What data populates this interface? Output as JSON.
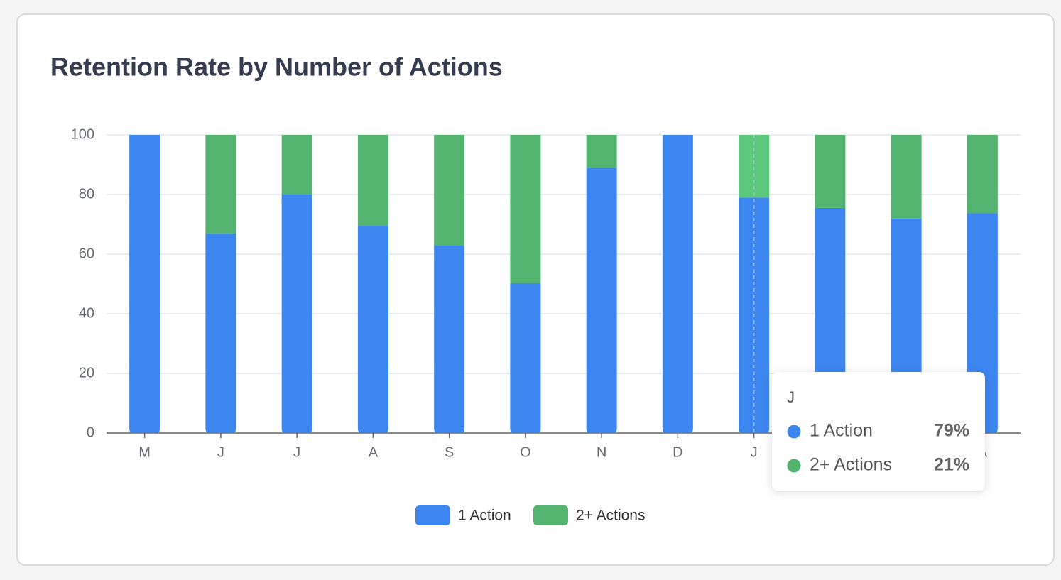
{
  "chart_data": {
    "type": "stacked-bar",
    "title": "Retention Rate by Number of Actions",
    "categories": [
      "M",
      "J",
      "J",
      "A",
      "S",
      "O",
      "N",
      "D",
      "J",
      null,
      null,
      "A"
    ],
    "series": [
      {
        "name": "1 Action",
        "color": "#3d86f0",
        "values": [
          100,
          67,
          80,
          69.5,
          63,
          50.3,
          89,
          100,
          79,
          75.5,
          72,
          73.7
        ]
      },
      {
        "name": "2+ Actions",
        "color": "#52b46f",
        "values": [
          0,
          33,
          20,
          30.5,
          37,
          49.7,
          11,
          0,
          21,
          24.5,
          28,
          26.3
        ]
      }
    ],
    "ylim": [
      0,
      100
    ],
    "yticks": [
      0,
      20,
      40,
      60,
      80,
      100
    ],
    "grid": true,
    "legend": "bottom",
    "tooltip": {
      "category": "J",
      "value_labels": [
        "79%",
        "21%"
      ]
    }
  }
}
